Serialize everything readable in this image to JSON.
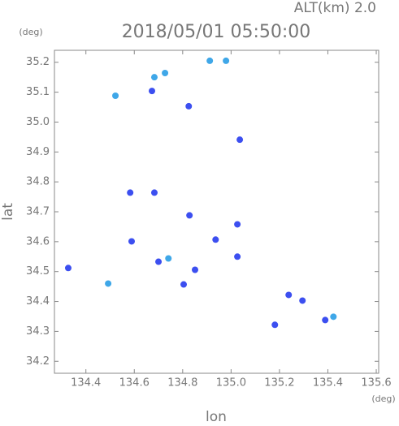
{
  "chart_data": {
    "type": "scatter",
    "title": "2018/05/01 05:50:00",
    "subtitle": "ALT(km) 2.0",
    "x_label": "lon",
    "y_label": "lat",
    "x_unit": "(deg)",
    "y_unit": "(deg)",
    "xlim": [
      134.27,
      135.61
    ],
    "ylim": [
      34.16,
      35.24
    ],
    "xticks": [
      134.4,
      134.6,
      134.8,
      {
        "value": 135.0,
        "label": "135.0"
      },
      135.2,
      135.4,
      135.6
    ],
    "yticks": [
      34.2,
      34.3,
      34.4,
      34.5,
      34.6,
      34.7,
      34.8,
      34.9,
      {
        "value": 35.0,
        "label": "35.0"
      },
      35.1,
      35.2
    ],
    "grid": false,
    "series": [
      {
        "color": "#3c4ff0",
        "x": [
          134.825,
          135.036,
          134.583,
          134.683,
          134.828,
          135.026,
          134.589,
          134.936,
          134.327,
          134.7,
          134.804,
          134.851,
          135.026,
          135.238,
          135.295,
          135.181,
          135.389,
          134.673
        ],
        "values": [
          35.053,
          34.941,
          34.764,
          34.764,
          34.688,
          34.658,
          34.601,
          34.607,
          34.512,
          34.533,
          34.457,
          34.506,
          34.55,
          34.422,
          34.403,
          34.322,
          34.338,
          35.104
        ]
      },
      {
        "color": "#3fa7e8",
        "x": [
          134.522,
          134.683,
          134.727,
          134.912,
          134.979,
          134.492,
          134.741,
          135.423
        ],
        "values": [
          35.088,
          35.15,
          35.164,
          35.205,
          35.205,
          34.46,
          34.544,
          34.349
        ]
      }
    ]
  }
}
